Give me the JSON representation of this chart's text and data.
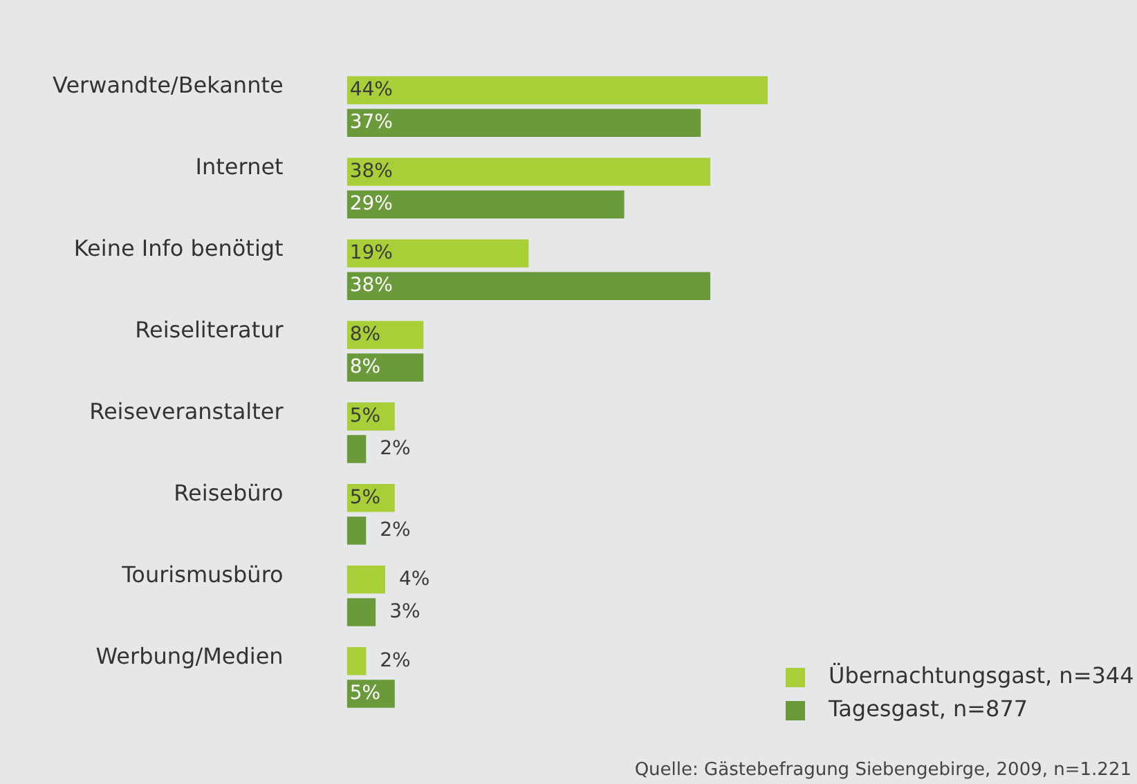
{
  "chart_data": {
    "type": "bar",
    "orientation": "horizontal",
    "legend": "bottom right",
    "categories": [
      "Verwandte/Bekannte",
      "Internet",
      "Keine Info benötigt",
      "Reiseliteratur",
      "Reiseveranstalter",
      "Reisebüro",
      "Tourismusbüro",
      "Werbung/Medien"
    ],
    "series": [
      {
        "name": "Übernachtungsgast, n=344",
        "color": "#a8cf38",
        "values": [
          44,
          38,
          19,
          8,
          5,
          5,
          4,
          2
        ],
        "value_labels": [
          "44%",
          "38%",
          "19%",
          "8%",
          "5%",
          "5%",
          "4%",
          "2%"
        ]
      },
      {
        "name": "Tagesgast, n=877",
        "color": "#6a9a3a",
        "values": [
          37,
          29,
          38,
          8,
          2,
          2,
          3,
          5
        ],
        "value_labels": [
          "37%",
          "29%",
          "38%",
          "8%",
          "2%",
          "2%",
          "3%",
          "5%"
        ]
      }
    ],
    "annotations": [
      "Quelle: Gästebefragung Siebengebirge, 2009, n=1.221"
    ]
  }
}
